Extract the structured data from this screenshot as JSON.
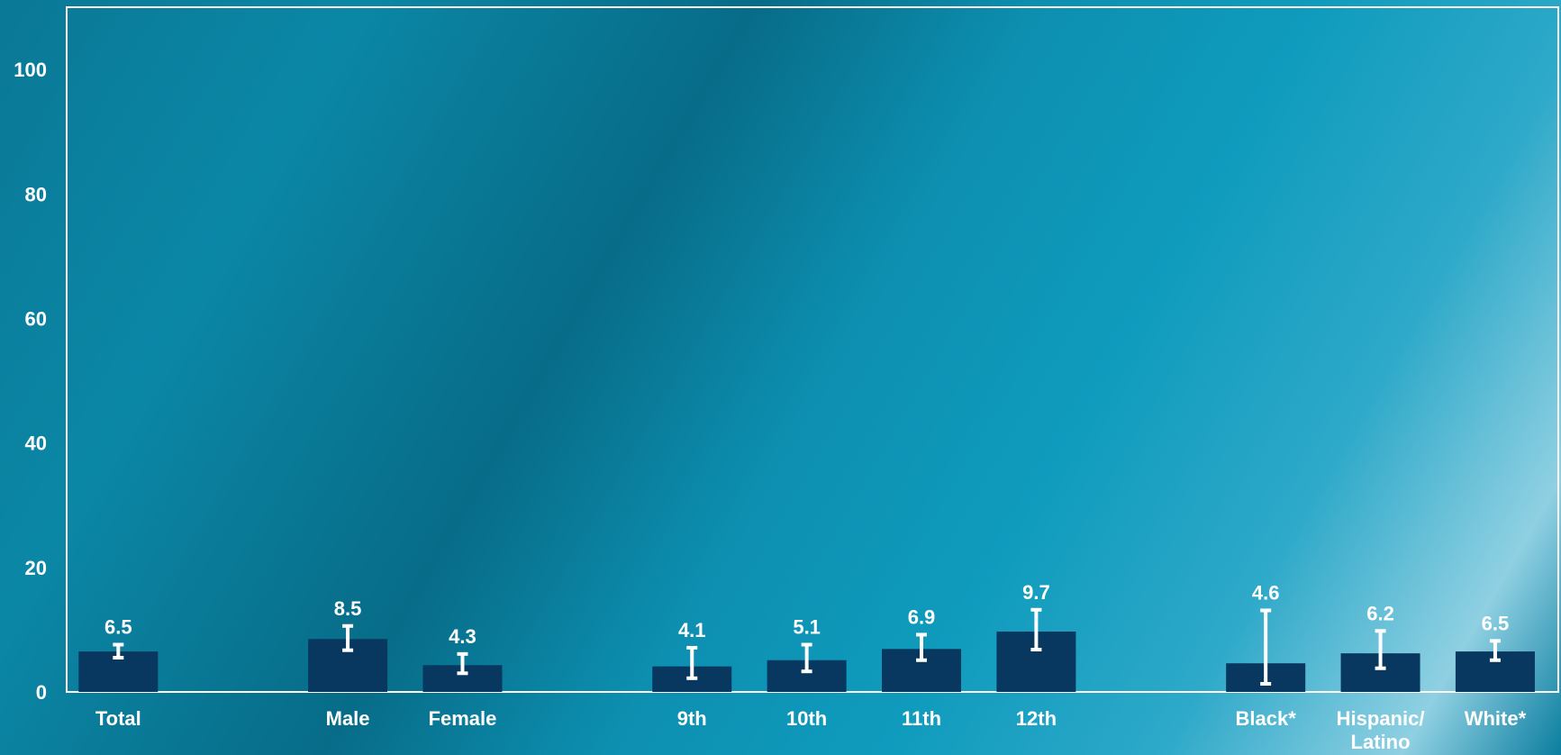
{
  "chart_data": {
    "type": "bar",
    "title": "",
    "xlabel": "",
    "ylabel": "",
    "ylim": [
      0,
      110
    ],
    "yticks": [
      "0",
      "20",
      "40",
      "60",
      "80",
      "100"
    ],
    "categories": [
      "Total",
      "Male",
      "Female",
      "9th",
      "10th",
      "11th",
      "12th",
      "Black*",
      "Hispanic/ Latino",
      "White*"
    ],
    "values": [
      6.5,
      8.5,
      4.3,
      4.1,
      5.1,
      6.9,
      9.7,
      4.6,
      6.2,
      6.5
    ],
    "labels": [
      "6.5",
      "8.5",
      "4.3",
      "4.1",
      "5.1",
      "6.9",
      "9.7",
      "4.6",
      "6.2",
      "6.5"
    ],
    "ci_low": [
      5.5,
      6.7,
      3.0,
      2.2,
      3.3,
      5.1,
      6.8,
      1.3,
      3.8,
      5.1
    ],
    "ci_high": [
      7.6,
      10.6,
      6.1,
      7.1,
      7.6,
      9.2,
      13.2,
      13.1,
      9.8,
      8.2
    ],
    "groups": [
      [
        0
      ],
      [
        1,
        2
      ],
      [
        3,
        4,
        5,
        6
      ],
      [
        7,
        8,
        9
      ]
    ],
    "bar_color": "#08375f",
    "error_bar_color": "#ffffff",
    "axis_color": "#ffffff"
  }
}
